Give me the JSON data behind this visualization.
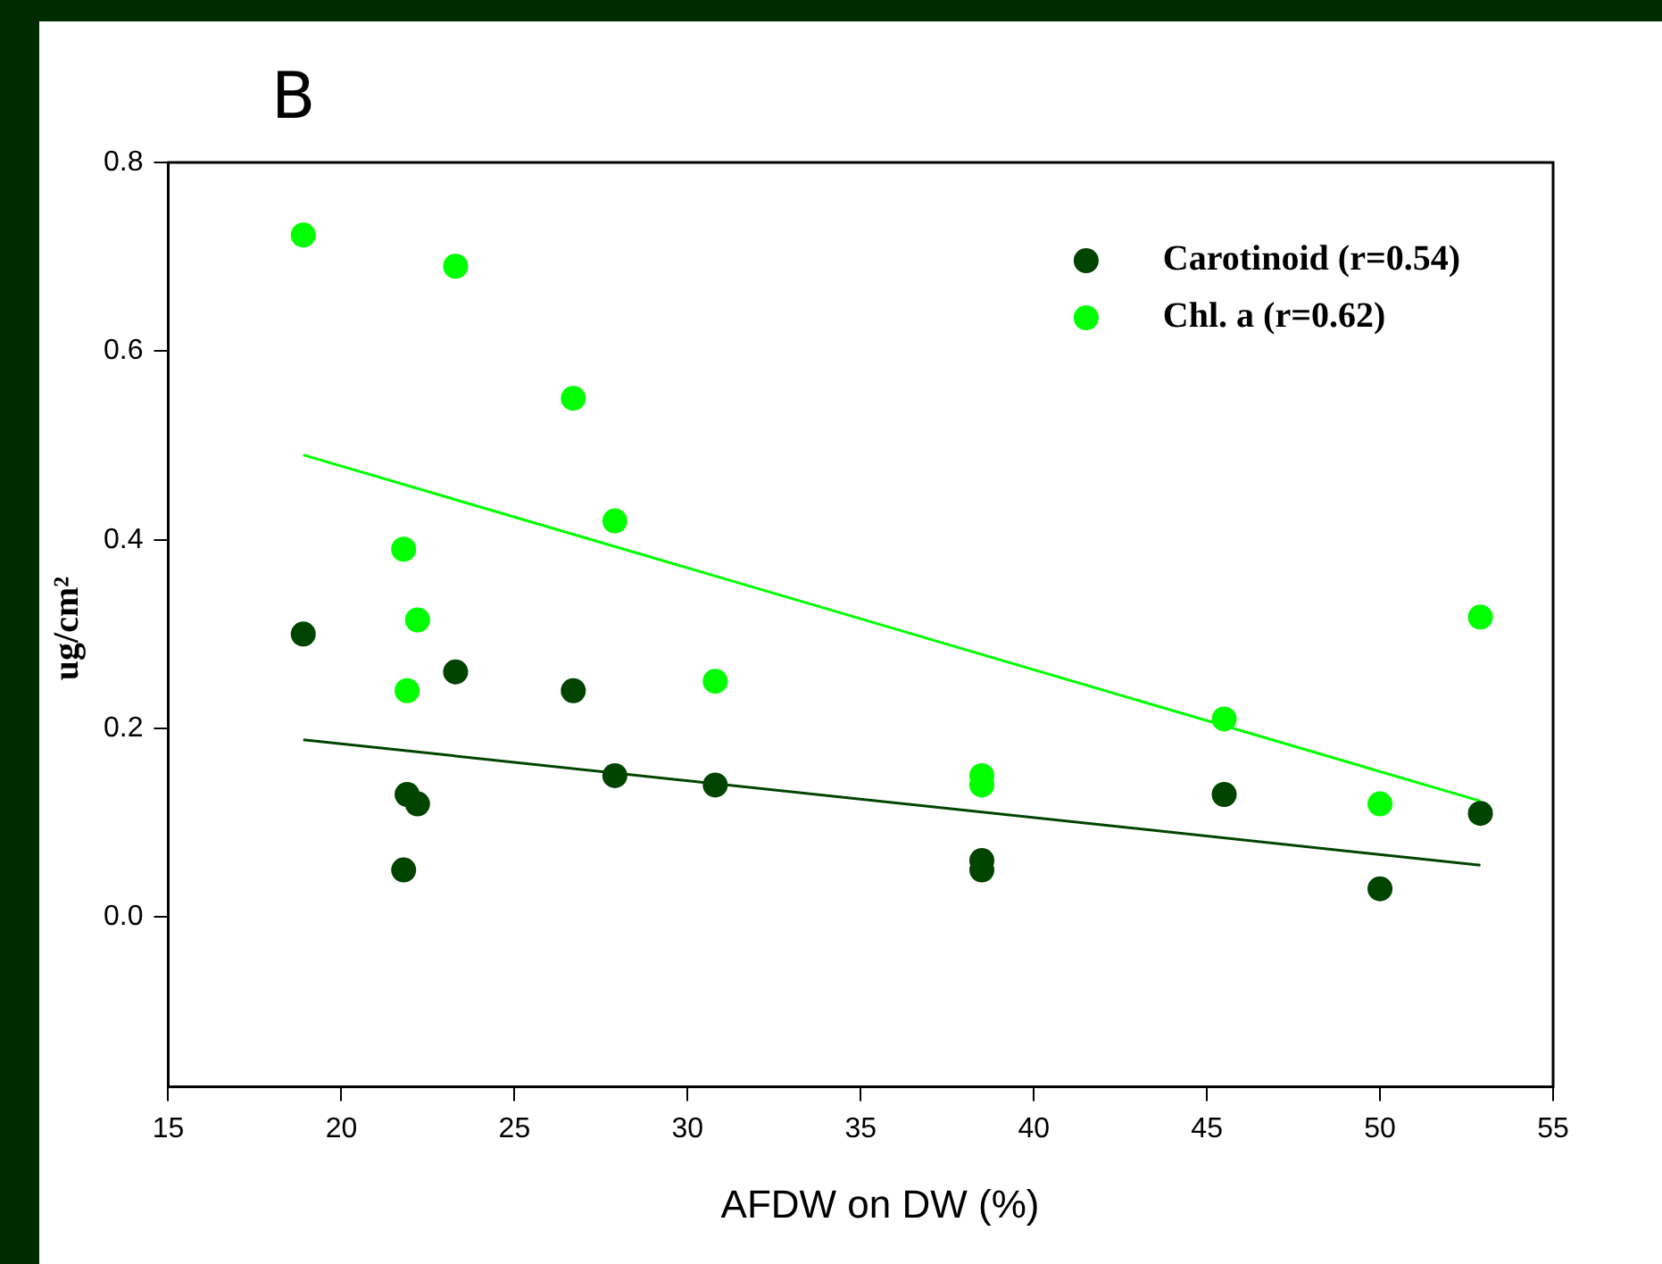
{
  "chart_data": {
    "type": "scatter",
    "title": "B",
    "xlabel": "AFDW on DW (%)",
    "ylabel": "ug/cm²",
    "xlim": [
      15,
      55
    ],
    "xticks": [
      15,
      20,
      25,
      30,
      35,
      40,
      45,
      50,
      55
    ],
    "ylim": [
      -0.18,
      0.8
    ],
    "yticks": [
      {
        "value": 0,
        "label": "0.0"
      },
      0.2,
      0.4,
      0.6,
      0.8
    ],
    "grid": false,
    "legend": "top right",
    "marker": "circle",
    "series": [
      {
        "name": "Carotinoid (r=0.54)",
        "color": "#004400",
        "x": [
          18.9,
          21.8,
          21.9,
          22.2,
          23.3,
          26.7,
          27.9,
          30.8,
          38.5,
          38.5,
          45.5,
          50,
          52.9
        ],
        "values": [
          0.3,
          0.05,
          0.13,
          0.12,
          0.26,
          0.24,
          0.15,
          0.14,
          0.06,
          0.05,
          0.13,
          0.03,
          0.11
        ]
      },
      {
        "name": "Chl. a (r=0.62)",
        "color": "#00ff00",
        "x": [
          18.9,
          21.8,
          21.9,
          22.2,
          23.3,
          26.7,
          27.9,
          30.8,
          38.5,
          38.5,
          45.5,
          50,
          52.9
        ],
        "values": [
          0.723,
          0.39,
          0.24,
          0.315,
          0.69,
          0.55,
          0.42,
          0.25,
          0.15,
          0.14,
          0.21,
          0.12,
          0.318
        ]
      },
      {
        "type": "line",
        "marker": "none",
        "color": "#004400",
        "x": [
          18.9,
          52.9
        ],
        "values": [
          0.188,
          0.055
        ]
      },
      {
        "type": "line",
        "marker": "none",
        "color": "#00ff00",
        "x": [
          18.9,
          52.9
        ],
        "values": [
          0.49,
          0.123
        ]
      }
    ]
  }
}
